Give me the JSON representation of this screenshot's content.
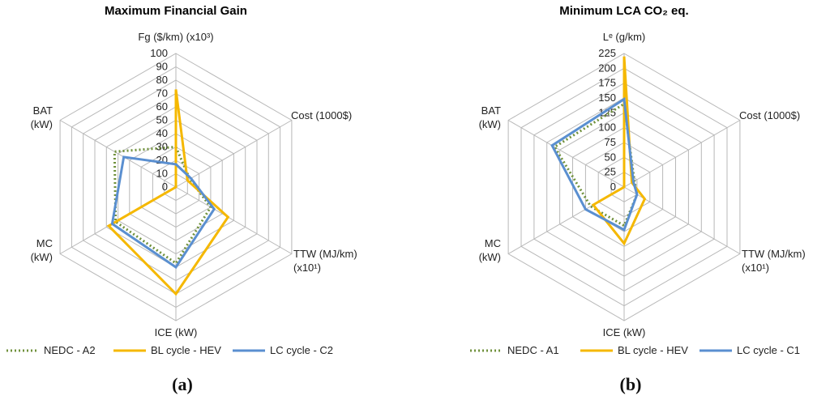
{
  "colors": {
    "grid": "#b8b8b8",
    "nedc": "#70913c",
    "bl": "#f5b800",
    "lc": "#5a8fd0"
  },
  "chart_data": [
    {
      "type": "radar",
      "title": "Maximum Financial Gain",
      "panel_label": "(a)",
      "axes": [
        "Fg ($/km) (x10³)",
        "Cost (1000$)",
        "TTW (MJ/km) (x10¹)",
        "ICE (kW)",
        "MC (kW)",
        "BAT (kW)"
      ],
      "axis_label_lines": [
        [
          "Fg ($/km) (x10³)"
        ],
        [
          "Cost (1000$)"
        ],
        [
          "TTW (MJ/km)",
          "(x10¹)"
        ],
        [
          "ICE (kW)"
        ],
        [
          "MC",
          "(kW)"
        ],
        [
          "BAT",
          "(kW)"
        ]
      ],
      "rmax": 100,
      "ticks": [
        "0",
        "10",
        "20",
        "30",
        "40",
        "50",
        "60",
        "70",
        "80",
        "90",
        "100"
      ],
      "tick_values": [
        0,
        10,
        20,
        30,
        40,
        50,
        60,
        70,
        80,
        90,
        100
      ],
      "series": [
        {
          "name": "NEDC - A2",
          "style": "dotted",
          "values": [
            30,
            12,
            30,
            57,
            52,
            53
          ]
        },
        {
          "name": "BL cycle - HEV",
          "style": "solid",
          "values": [
            73,
            10,
            45,
            80,
            58,
            0
          ]
        },
        {
          "name": "LC cycle - C2",
          "style": "solid",
          "values": [
            17,
            13,
            33,
            60,
            55,
            45
          ]
        }
      ]
    },
    {
      "type": "radar",
      "title": "Minimum LCA CO₂ eq.",
      "panel_label": "(b)",
      "axes": [
        "Lᵉ (g/km)",
        "Cost (1000$)",
        "TTW (MJ/km) (x10¹)",
        "ICE (kW)",
        "MC (kW)",
        "BAT (kW)"
      ],
      "axis_label_lines": [
        [
          "Lᵉ (g/km)"
        ],
        [
          "Cost (1000$)"
        ],
        [
          "TTW (MJ/km)",
          "(x10¹)"
        ],
        [
          "ICE (kW)"
        ],
        [
          "MC",
          "(kW)"
        ],
        [
          "BAT",
          "(kW)"
        ]
      ],
      "rmax": 225,
      "ticks": [
        "0",
        "25",
        "50",
        "75",
        "100",
        "125",
        "150",
        "175",
        "200",
        "225"
      ],
      "tick_values": [
        0,
        25,
        50,
        75,
        100,
        125,
        150,
        175,
        200,
        225
      ],
      "series": [
        {
          "name": "NEDC - A1",
          "style": "dotted",
          "values": [
            140,
            20,
            25,
            65,
            65,
            135
          ]
        },
        {
          "name": "BL cycle - HEV",
          "style": "solid",
          "values": [
            220,
            15,
            40,
            95,
            60,
            0
          ]
        },
        {
          "name": "LC cycle - C1",
          "style": "solid",
          "values": [
            148,
            18,
            25,
            72,
            75,
            140
          ]
        }
      ]
    }
  ]
}
